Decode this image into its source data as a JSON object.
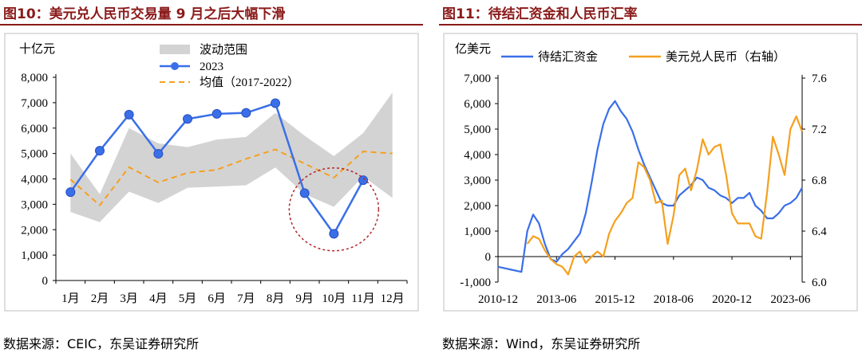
{
  "left": {
    "title": "图10：美元兑人民币交易量 9 月之后大幅下滑",
    "source": "数据来源：CEIC，东吴证券研究所",
    "chart_data": {
      "type": "line",
      "unit_label": "十亿元",
      "categories": [
        "1月",
        "2月",
        "3月",
        "4月",
        "5月",
        "6月",
        "7月",
        "8月",
        "9月",
        "10月",
        "11月",
        "12月"
      ],
      "ylim": [
        0,
        8000
      ],
      "yticks": [
        0,
        1000,
        2000,
        3000,
        4000,
        5000,
        6000,
        7000,
        8000
      ],
      "ytick_labels": [
        "0",
        "1,000",
        "2,000",
        "3,000",
        "4,000",
        "5,000",
        "6,000",
        "7,000",
        "8,000"
      ],
      "band": {
        "name": "波动范围",
        "upper": [
          5000,
          3400,
          6000,
          5400,
          5250,
          5550,
          5650,
          6600,
          5700,
          4900,
          5800,
          7400
        ],
        "lower": [
          2700,
          2300,
          3500,
          3050,
          3650,
          3700,
          3750,
          4450,
          3400,
          2900,
          4100,
          3250
        ]
      },
      "series": [
        {
          "name": "2023",
          "values": [
            3480,
            5110,
            6530,
            4990,
            6360,
            6560,
            6600,
            6980,
            3440,
            1840,
            3950,
            null
          ]
        },
        {
          "name": "均值（2017-2022）",
          "values": [
            3980,
            2960,
            4460,
            3860,
            4240,
            4360,
            4790,
            5160,
            4600,
            4050,
            5080,
            5000
          ]
        }
      ],
      "legend_position": "top-center",
      "annotation": "red dashed circle highlighting Sep–Nov",
      "colors": {
        "band": "#d3d3d3",
        "series2023": "#3a6fe8",
        "average": "#f5a01e",
        "circle": "#b3262b"
      }
    }
  },
  "right": {
    "title": "图11：待结汇资金和人民币汇率",
    "source": "数据来源：Wind，东吴证券研究所",
    "chart_data": {
      "type": "line",
      "unit_label": "亿美元",
      "x_tick_labels": [
        "2010-12",
        "2013-06",
        "2015-12",
        "2018-06",
        "2020-12",
        "2023-06"
      ],
      "x_range": [
        "2010-12",
        "2023-12"
      ],
      "ylim_left": [
        -1000,
        7000
      ],
      "yticks_left": [
        "-1,000",
        "0",
        "1,000",
        "2,000",
        "3,000",
        "4,000",
        "5,000",
        "6,000",
        "7,000"
      ],
      "ylim_right": [
        6.0,
        7.6
      ],
      "yticks_right": [
        "6.0",
        "6.4",
        "6.8",
        "7.2",
        "7.6"
      ],
      "series": [
        {
          "name": "待结汇资金",
          "axis": "left",
          "x": [
            "2010-12",
            "2011-06",
            "2011-12",
            "2012-03",
            "2012-06",
            "2012-09",
            "2012-12",
            "2013-03",
            "2013-06",
            "2013-09",
            "2013-12",
            "2014-03",
            "2014-06",
            "2014-09",
            "2014-12",
            "2015-03",
            "2015-06",
            "2015-09",
            "2015-12",
            "2016-03",
            "2016-06",
            "2016-09",
            "2016-12",
            "2017-03",
            "2017-06",
            "2017-09",
            "2017-12",
            "2018-03",
            "2018-06",
            "2018-09",
            "2018-12",
            "2019-03",
            "2019-06",
            "2019-09",
            "2019-12",
            "2020-03",
            "2020-06",
            "2020-09",
            "2020-12",
            "2021-03",
            "2021-06",
            "2021-09",
            "2021-12",
            "2022-03",
            "2022-06",
            "2022-09",
            "2022-12",
            "2023-03",
            "2023-06",
            "2023-09",
            "2023-12"
          ],
          "values": [
            -400,
            -500,
            -600,
            1000,
            1650,
            1300,
            500,
            -100,
            -200,
            100,
            300,
            600,
            900,
            1700,
            2900,
            4200,
            5200,
            5800,
            6100,
            5700,
            5400,
            4900,
            4200,
            3600,
            3100,
            2600,
            2100,
            2000,
            2000,
            2400,
            2600,
            2800,
            3100,
            3000,
            2700,
            2600,
            2400,
            2300,
            2100,
            2300,
            2300,
            2500,
            2000,
            1800,
            1500,
            1500,
            1700,
            2000,
            2100,
            2300,
            2700
          ]
        },
        {
          "name": "美元兑人民币（右轴）",
          "axis": "right",
          "x": [
            "2010-12",
            "2011-06",
            "2011-12",
            "2012-03",
            "2012-06",
            "2012-09",
            "2012-12",
            "2013-03",
            "2013-06",
            "2013-09",
            "2013-12",
            "2014-03",
            "2014-06",
            "2014-09",
            "2014-12",
            "2015-03",
            "2015-06",
            "2015-09",
            "2015-12",
            "2016-03",
            "2016-06",
            "2016-09",
            "2016-12",
            "2017-03",
            "2017-06",
            "2017-09",
            "2017-12",
            "2018-03",
            "2018-06",
            "2018-09",
            "2018-12",
            "2019-03",
            "2019-06",
            "2019-09",
            "2019-12",
            "2020-03",
            "2020-06",
            "2020-09",
            "2020-12",
            "2021-03",
            "2021-06",
            "2021-09",
            "2021-12",
            "2022-03",
            "2022-06",
            "2022-09",
            "2022-12",
            "2023-03",
            "2023-06",
            "2023-09",
            "2023-12"
          ],
          "values": [
            null,
            null,
            null,
            6.3,
            6.36,
            6.34,
            6.25,
            6.18,
            6.14,
            6.12,
            6.06,
            6.2,
            6.24,
            6.15,
            6.2,
            6.24,
            6.2,
            6.38,
            6.48,
            6.54,
            6.62,
            6.66,
            6.94,
            6.9,
            6.8,
            6.62,
            6.64,
            6.3,
            6.52,
            6.84,
            6.89,
            6.72,
            6.88,
            7.12,
            7.0,
            7.06,
            7.08,
            6.84,
            6.54,
            6.46,
            6.46,
            6.46,
            6.36,
            6.34,
            6.7,
            7.14,
            7.0,
            6.84,
            7.2,
            7.3,
            7.18
          ]
        }
      ],
      "legend_position": "top",
      "colors": {
        "funds": "#3a6fe8",
        "fx": "#f5a01e"
      }
    }
  }
}
